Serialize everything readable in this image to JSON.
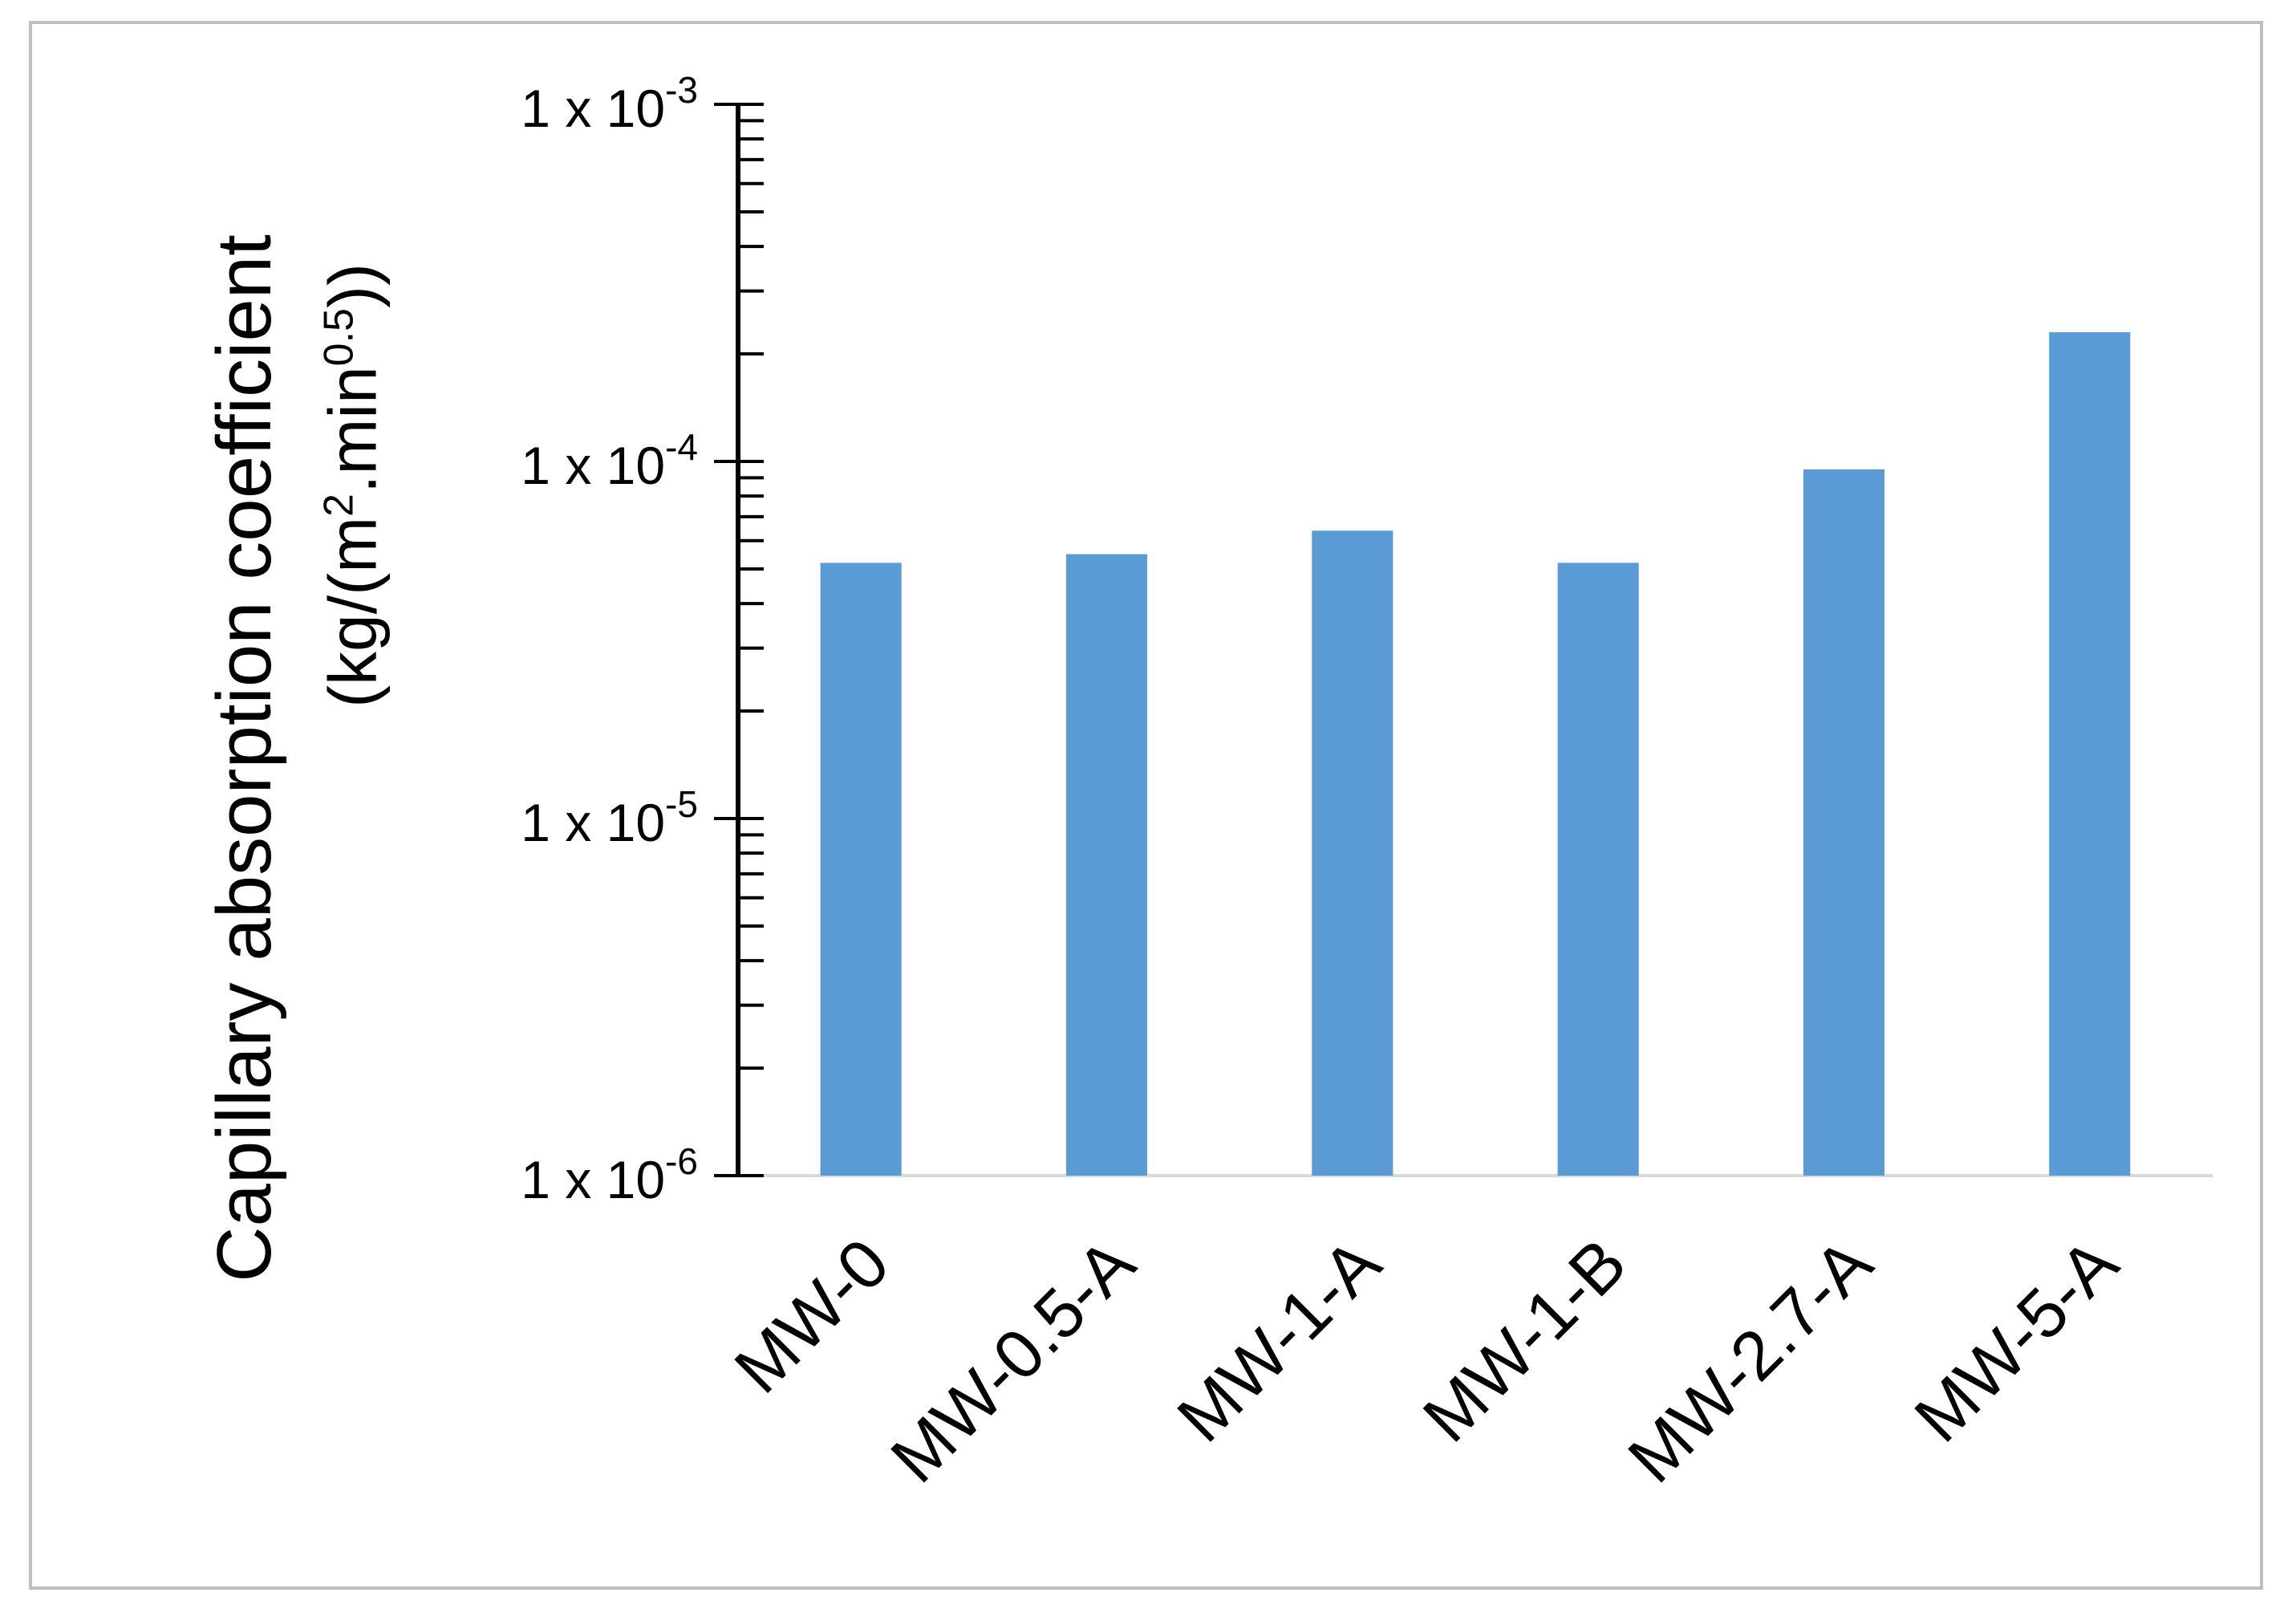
{
  "chart_data": {
    "type": "bar",
    "categories": [
      "MW-0",
      "MW-0.5-A",
      "MW-1-A",
      "MW-1-B",
      "MW-2.7-A",
      "MW-5-A"
    ],
    "values": [
      5.2e-05,
      5.5e-05,
      6.4e-05,
      5.2e-05,
      9.5e-05,
      0.00023
    ],
    "ylabel": "Capillary absorption coefficient",
    "ylabel_units_prefix": "(kg/(m",
    "ylabel_units_sup1": "2",
    "ylabel_units_mid": ".min",
    "ylabel_units_sup2": "0.5",
    "ylabel_units_suffix": "))",
    "yscale": "log",
    "ylim": [
      1e-06,
      0.001
    ],
    "ytick_labels": [
      {
        "value": 0.001,
        "base": "1 x 10",
        "exp": "-3"
      },
      {
        "value": 0.0001,
        "base": "1 x 10",
        "exp": "-4"
      },
      {
        "value": 1e-05,
        "base": "1 x 10",
        "exp": "-5"
      },
      {
        "value": 1e-06,
        "base": "1 x 10",
        "exp": "-6"
      }
    ],
    "grid": false,
    "bar_color": "#5b9bd5"
  }
}
